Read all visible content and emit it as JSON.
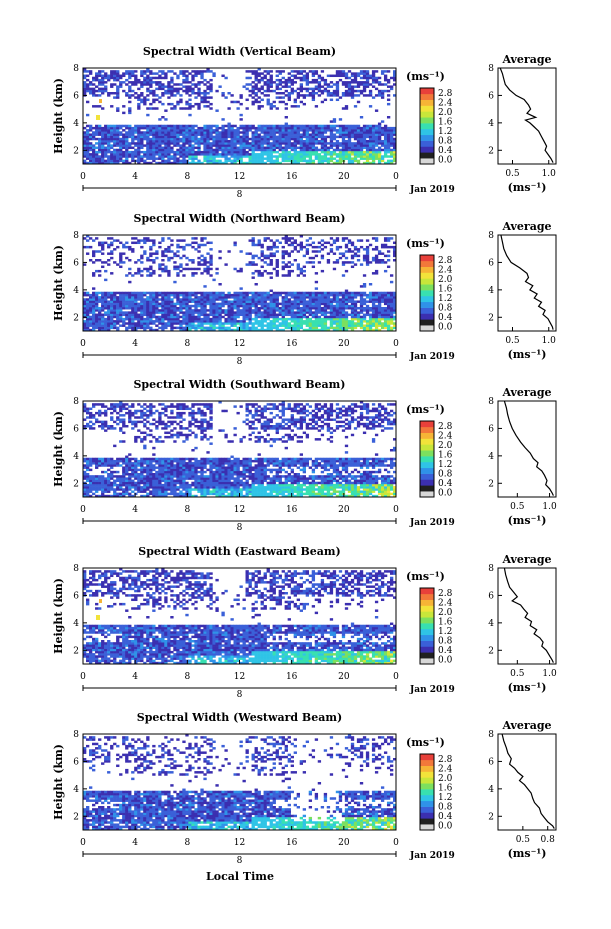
{
  "figure": {
    "xlabel": "Local Time"
  },
  "colorbar": {
    "unit_label": "(ms⁻¹)",
    "tick_labels": [
      "0.0",
      "0.4",
      "0.8",
      "1.2",
      "1.6",
      "2.0",
      "2.4",
      "2.8"
    ],
    "range": [
      0.0,
      2.8
    ],
    "colors": [
      "#d8d8d8",
      "#202020",
      "#3b2fb0",
      "#3a60d8",
      "#2f92e8",
      "#2fc4e6",
      "#38e0b0",
      "#7ce05e",
      "#c8e63a",
      "#f2e33a",
      "#f6b436",
      "#f2783a",
      "#e8403a"
    ]
  },
  "chart_data": [
    {
      "type": "heatmap",
      "title": "Spectral Width (Vertical Beam)",
      "ylabel": "Height (km)",
      "y_ticks": [
        "2",
        "4",
        "6",
        "8"
      ],
      "ylim": [
        1,
        8
      ],
      "x_ticks": [
        "0",
        "4",
        "8",
        "12",
        "16",
        "20",
        "0"
      ],
      "xlim": [
        0,
        24
      ],
      "date_marker": "8",
      "date_label": "Jan 2019",
      "profile": {
        "title": "Average",
        "xlabel": "(ms⁻¹)",
        "x_ticks": [
          "0.5",
          "1.0"
        ],
        "xlim": [
          0.3,
          1.1
        ],
        "y_ticks": [
          "2",
          "4",
          "6",
          "8"
        ],
        "ylim": [
          1,
          8
        ],
        "points": [
          [
            0.33,
            8.0
          ],
          [
            0.36,
            7.6
          ],
          [
            0.38,
            7.2
          ],
          [
            0.4,
            6.8
          ],
          [
            0.46,
            6.4
          ],
          [
            0.55,
            6.0
          ],
          [
            0.66,
            5.7
          ],
          [
            0.72,
            5.3
          ],
          [
            0.75,
            5.0
          ],
          [
            0.7,
            4.7
          ],
          [
            0.82,
            4.4
          ],
          [
            0.68,
            4.2
          ],
          [
            0.74,
            4.0
          ],
          [
            0.8,
            3.7
          ],
          [
            0.86,
            3.4
          ],
          [
            0.9,
            3.0
          ],
          [
            0.93,
            2.7
          ],
          [
            0.97,
            2.3
          ],
          [
            0.95,
            2.0
          ],
          [
            0.99,
            1.7
          ],
          [
            1.03,
            1.4
          ],
          [
            1.06,
            1.1
          ]
        ]
      }
    },
    {
      "type": "heatmap",
      "title": "Spectral Width (Northward Beam)",
      "ylabel": "Height (km)",
      "y_ticks": [
        "2",
        "4",
        "6",
        "8"
      ],
      "ylim": [
        1,
        8
      ],
      "x_ticks": [
        "0",
        "4",
        "8",
        "12",
        "16",
        "20",
        "0"
      ],
      "xlim": [
        0,
        24
      ],
      "date_marker": "8",
      "date_label": "Jan 2019",
      "profile": {
        "title": "Average",
        "xlabel": "(ms⁻¹)",
        "x_ticks": [
          "0.5",
          "1.0"
        ],
        "xlim": [
          0.3,
          1.1
        ],
        "y_ticks": [
          "2",
          "4",
          "6",
          "8"
        ],
        "ylim": [
          1,
          8
        ],
        "points": [
          [
            0.34,
            8.0
          ],
          [
            0.36,
            7.5
          ],
          [
            0.38,
            7.0
          ],
          [
            0.42,
            6.5
          ],
          [
            0.48,
            6.0
          ],
          [
            0.6,
            5.6
          ],
          [
            0.7,
            5.2
          ],
          [
            0.72,
            4.9
          ],
          [
            0.68,
            4.6
          ],
          [
            0.78,
            4.3
          ],
          [
            0.74,
            4.0
          ],
          [
            0.84,
            3.7
          ],
          [
            0.8,
            3.4
          ],
          [
            0.9,
            3.1
          ],
          [
            0.86,
            2.8
          ],
          [
            0.95,
            2.5
          ],
          [
            0.92,
            2.2
          ],
          [
            0.99,
            1.9
          ],
          [
            1.02,
            1.6
          ],
          [
            1.05,
            1.3
          ],
          [
            1.06,
            1.1
          ]
        ]
      }
    },
    {
      "type": "heatmap",
      "title": "Spectral Width (Southward Beam)",
      "ylabel": "Height (km)",
      "y_ticks": [
        "2",
        "4",
        "6",
        "8"
      ],
      "ylim": [
        1,
        8
      ],
      "x_ticks": [
        "0",
        "4",
        "8",
        "12",
        "16",
        "20",
        "0"
      ],
      "xlim": [
        0,
        24
      ],
      "date_marker": "8",
      "date_label": "Jan 2019",
      "profile": {
        "title": "Average",
        "xlabel": "(ms⁻¹)",
        "x_ticks": [
          "0.5",
          "1.0"
        ],
        "xlim": [
          0.2,
          1.1
        ],
        "y_ticks": [
          "2",
          "4",
          "6",
          "8"
        ],
        "ylim": [
          1,
          8
        ],
        "points": [
          [
            0.3,
            8.0
          ],
          [
            0.33,
            7.5
          ],
          [
            0.35,
            7.0
          ],
          [
            0.38,
            6.5
          ],
          [
            0.42,
            6.0
          ],
          [
            0.48,
            5.5
          ],
          [
            0.55,
            5.0
          ],
          [
            0.62,
            4.6
          ],
          [
            0.7,
            4.2
          ],
          [
            0.75,
            3.8
          ],
          [
            0.82,
            3.5
          ],
          [
            0.8,
            3.2
          ],
          [
            0.88,
            2.9
          ],
          [
            0.92,
            2.6
          ],
          [
            0.96,
            2.2
          ],
          [
            0.94,
            1.9
          ],
          [
            1.0,
            1.6
          ],
          [
            1.04,
            1.3
          ],
          [
            1.06,
            1.1
          ]
        ]
      }
    },
    {
      "type": "heatmap",
      "title": "Spectral Width (Eastward Beam)",
      "ylabel": "Height (km)",
      "y_ticks": [
        "2",
        "4",
        "6",
        "8"
      ],
      "ylim": [
        1,
        8
      ],
      "x_ticks": [
        "0",
        "4",
        "8",
        "12",
        "16",
        "20",
        "0"
      ],
      "xlim": [
        0,
        24
      ],
      "date_marker": "8",
      "date_label": "Jan 2019",
      "profile": {
        "title": "Average",
        "xlabel": "(ms⁻¹)",
        "x_ticks": [
          "0.5",
          "1.0"
        ],
        "xlim": [
          0.2,
          1.1
        ],
        "y_ticks": [
          "2",
          "4",
          "6",
          "8"
        ],
        "ylim": [
          1,
          8
        ],
        "points": [
          [
            0.3,
            8.0
          ],
          [
            0.32,
            7.5
          ],
          [
            0.35,
            7.0
          ],
          [
            0.38,
            6.6
          ],
          [
            0.45,
            6.2
          ],
          [
            0.5,
            5.9
          ],
          [
            0.42,
            5.6
          ],
          [
            0.55,
            5.3
          ],
          [
            0.6,
            5.0
          ],
          [
            0.66,
            4.7
          ],
          [
            0.62,
            4.4
          ],
          [
            0.72,
            4.1
          ],
          [
            0.7,
            3.8
          ],
          [
            0.8,
            3.5
          ],
          [
            0.76,
            3.2
          ],
          [
            0.85,
            2.9
          ],
          [
            0.9,
            2.6
          ],
          [
            0.88,
            2.3
          ],
          [
            0.95,
            2.0
          ],
          [
            1.0,
            1.6
          ],
          [
            1.04,
            1.3
          ],
          [
            1.06,
            1.1
          ]
        ]
      }
    },
    {
      "type": "heatmap",
      "title": "Spectral Width (Westward Beam)",
      "ylabel": "Height (km)",
      "y_ticks": [
        "2",
        "4",
        "6",
        "8"
      ],
      "ylim": [
        1,
        8
      ],
      "x_ticks": [
        "0",
        "4",
        "8",
        "12",
        "16",
        "20",
        "0"
      ],
      "xlim": [
        0,
        24
      ],
      "date_marker": "8",
      "date_label": "Jan 2019",
      "profile": {
        "title": "Average",
        "xlabel": "(ms⁻¹)",
        "x_ticks": [
          "0.5",
          "0.8"
        ],
        "xlim": [
          0.2,
          0.9
        ],
        "y_ticks": [
          "2",
          "4",
          "6",
          "8"
        ],
        "ylim": [
          1,
          8
        ],
        "points": [
          [
            0.25,
            8.0
          ],
          [
            0.27,
            7.5
          ],
          [
            0.3,
            7.0
          ],
          [
            0.32,
            6.6
          ],
          [
            0.36,
            6.2
          ],
          [
            0.34,
            5.8
          ],
          [
            0.4,
            5.5
          ],
          [
            0.44,
            5.2
          ],
          [
            0.5,
            4.9
          ],
          [
            0.46,
            4.6
          ],
          [
            0.52,
            4.3
          ],
          [
            0.56,
            4.0
          ],
          [
            0.6,
            3.7
          ],
          [
            0.62,
            3.3
          ],
          [
            0.64,
            3.0
          ],
          [
            0.7,
            2.6
          ],
          [
            0.72,
            2.2
          ],
          [
            0.76,
            1.9
          ],
          [
            0.8,
            1.6
          ],
          [
            0.86,
            1.3
          ],
          [
            0.88,
            1.1
          ]
        ]
      }
    }
  ]
}
